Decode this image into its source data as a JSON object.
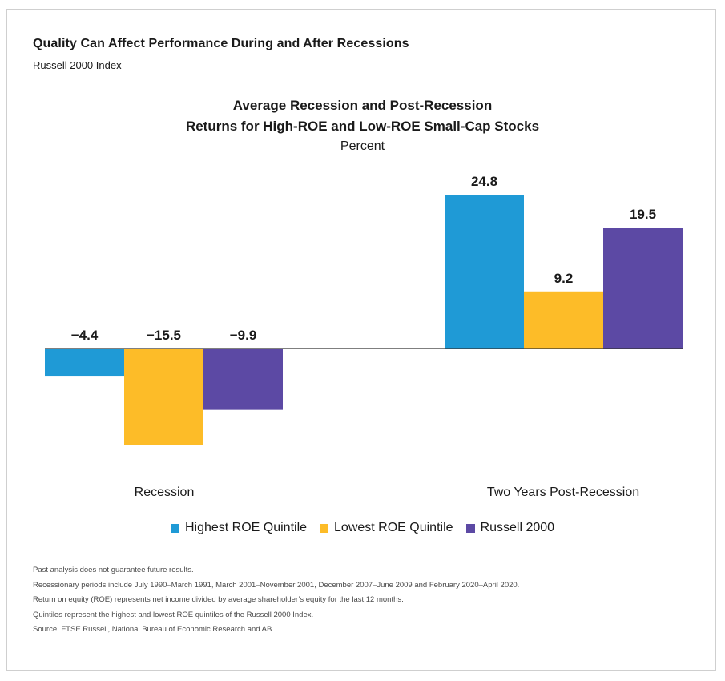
{
  "header": {
    "title": "Quality Can Affect Performance During and After Recessions",
    "subtitle": "Russell 2000 Index"
  },
  "chart_data": {
    "type": "bar",
    "title_line1": "Average Recession and Post-Recession",
    "title_line2": "Returns for High-ROE and Low-ROE Small-Cap Stocks",
    "units": "Percent",
    "categories": [
      "Recession",
      "Two Years Post-Recession"
    ],
    "series": [
      {
        "name": "Highest ROE Quintile",
        "color": "#1f9ad6",
        "values": [
          -4.4,
          24.8
        ],
        "labels": [
          "−4.4",
          "24.8"
        ]
      },
      {
        "name": "Lowest ROE Quintile",
        "color": "#fdbc28",
        "values": [
          -15.5,
          9.2
        ],
        "labels": [
          "−15.5",
          "9.2"
        ]
      },
      {
        "name": "Russell 2000",
        "color": "#5c49a4",
        "values": [
          -9.9,
          19.5
        ],
        "labels": [
          "−9.9",
          "19.5"
        ]
      }
    ],
    "grid": false,
    "legend_position": "bottom"
  },
  "footnotes": [
    "Past analysis does not guarantee future results.",
    "Recessionary periods include July 1990–March 1991, March 2001–November 2001, December 2007–June 2009 and February 2020–April 2020.",
    "Return on equity (ROE) represents net income divided by average shareholder’s equity for the last 12 months.",
    "Quintiles represent the highest and lowest ROE quintiles of the Russell 2000 Index.",
    "Source: FTSE Russell, National Bureau of Economic Research and AB"
  ]
}
